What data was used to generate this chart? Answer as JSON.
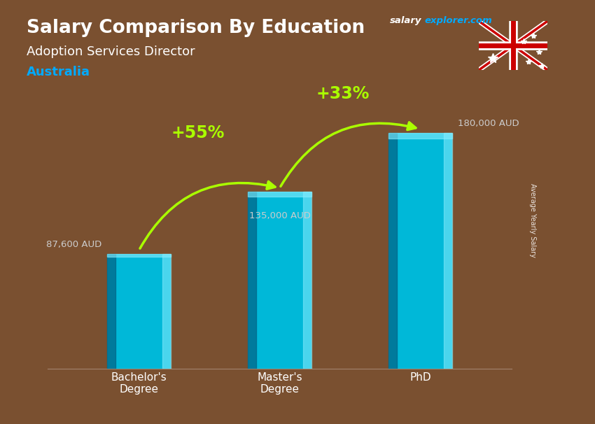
{
  "title_main": "Salary Comparison By Education",
  "title_sub": "Adoption Services Director",
  "title_country": "Australia",
  "categories": [
    "Bachelor's\nDegree",
    "Master's\nDegree",
    "PhD"
  ],
  "values": [
    87600,
    135000,
    180000
  ],
  "value_labels": [
    "87,600 AUD",
    "135,000 AUD",
    "180,000 AUD"
  ],
  "bar_color_mid": "#00b8d8",
  "bar_color_dark": "#006688",
  "bar_color_light": "#88eeff",
  "pct_labels": [
    "+55%",
    "+33%"
  ],
  "pct_color": "#aaff00",
  "text_color_white": "#ffffff",
  "text_color_cyan": "#00aaff",
  "salary_label_color": "#cccccc",
  "brand_salary": "salary",
  "brand_explorer": "explorer",
  "brand_com": ".com",
  "ylabel_text": "Average Yearly Salary",
  "bar_width": 0.45,
  "ylim": [
    0,
    220000
  ],
  "bg_color": "#7a5030",
  "arrow_lw": 2.5,
  "arrow_mutation_scale": 20
}
